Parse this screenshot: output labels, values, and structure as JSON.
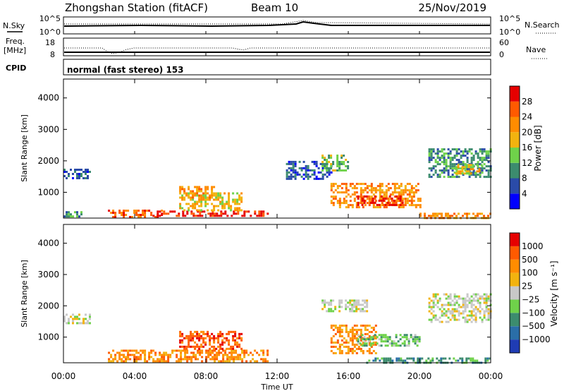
{
  "header": {
    "title": "Zhongshan Station (fitACF)",
    "beam": "Beam 10",
    "date": "25/Nov/2019"
  },
  "panels": {
    "nsky": {
      "label": "N.Sky",
      "right_label": "N.Search",
      "ticks": [
        "10^5",
        "10^0"
      ],
      "right_ticks": [
        "10^5",
        "10^0"
      ]
    },
    "freq": {
      "label_1": "Freq.",
      "label_2": "[MHz]",
      "right_label": "Nave",
      "ticks": [
        "18",
        "8"
      ],
      "right_ticks": [
        "60",
        "0"
      ]
    },
    "cpid": {
      "label": "CPID",
      "text": "normal (fast stereo) 153"
    }
  },
  "power": {
    "ylabel": "Slant Range [km]",
    "cbar_label": "Power [dB]",
    "cbar_ticks": [
      "28",
      "24",
      "20",
      "16",
      "12",
      "8",
      "4"
    ],
    "colors": [
      "#0000ff",
      "#2a4ba8",
      "#3c8c6e",
      "#6fd24a",
      "#f2b30f",
      "#ff8c00",
      "#ff5a00",
      "#e60000"
    ]
  },
  "velocity": {
    "ylabel": "Slant Range [km]",
    "cbar_label": "Velocity [m s⁻¹]",
    "cbar_ticks": [
      "1000",
      "500",
      "100",
      "25",
      "−25",
      "−100",
      "−500",
      "−1000"
    ],
    "colors": [
      "#1f3cb4",
      "#2a6ea8",
      "#3c8c6e",
      "#6fd24a",
      "#c8c8c8",
      "#f2b30f",
      "#ff8c00",
      "#ff5a00",
      "#e60000"
    ]
  },
  "axes": {
    "xlabel": "Time UT",
    "x_ticks": [
      "00:00",
      "04:00",
      "08:00",
      "12:00",
      "16:00",
      "20:00",
      "00:00"
    ],
    "y_ticks": [
      "4000",
      "3000",
      "2000",
      "1000"
    ]
  },
  "chart_data": {
    "type": "heatmap",
    "title": "Zhongshan Station (fitACF)",
    "subtitle": "Beam 10",
    "date": "25/Nov/2019",
    "xlabel": "Time UT",
    "ylabel": "Slant Range [km]",
    "xlim": [
      "00:00",
      "24:00"
    ],
    "ylim": [
      180,
      4600
    ],
    "x_ticks": [
      "00:00",
      "04:00",
      "08:00",
      "12:00",
      "16:00",
      "20:00",
      "00:00"
    ],
    "y_ticks": [
      1000,
      2000,
      3000,
      4000
    ],
    "power_colorbar": {
      "label": "Power [dB]",
      "ticks": [
        4,
        8,
        12,
        16,
        20,
        24,
        28
      ]
    },
    "velocity_colorbar": {
      "label": "Velocity [m s⁻¹]",
      "ticks": [
        1000,
        500,
        100,
        25,
        -25,
        -100,
        -500,
        -1000
      ]
    },
    "power_regions": [
      {
        "t": [
          0.0,
          1.5
        ],
        "r": [
          1450,
          1750
        ],
        "level": 1
      },
      {
        "t": [
          0.0,
          1.0
        ],
        "r": [
          220,
          400
        ],
        "level": 2
      },
      {
        "t": [
          2.5,
          5.5
        ],
        "r": [
          220,
          450
        ],
        "level": 6
      },
      {
        "t": [
          5.0,
          11.5
        ],
        "r": [
          220,
          420
        ],
        "level": 7
      },
      {
        "t": [
          6.5,
          10.0
        ],
        "r": [
          400,
          1000
        ],
        "level": 4
      },
      {
        "t": [
          6.5,
          8.5
        ],
        "r": [
          800,
          1200
        ],
        "level": 5
      },
      {
        "t": [
          12.5,
          15.0
        ],
        "r": [
          1400,
          2000
        ],
        "level": 1
      },
      {
        "t": [
          14.5,
          16.0
        ],
        "r": [
          1700,
          2200
        ],
        "level": 3
      },
      {
        "t": [
          15.0,
          20.0
        ],
        "r": [
          500,
          1300
        ],
        "level": 5
      },
      {
        "t": [
          16.5,
          19.0
        ],
        "r": [
          600,
          900
        ],
        "level": 7
      },
      {
        "t": [
          20.5,
          24.0
        ],
        "r": [
          1500,
          2400
        ],
        "level": 2
      },
      {
        "t": [
          22.0,
          23.5
        ],
        "r": [
          1600,
          1900
        ],
        "level": 4
      },
      {
        "t": [
          20.0,
          24.0
        ],
        "r": [
          200,
          350
        ],
        "level": 5
      }
    ],
    "velocity_regions": [
      {
        "t": [
          0.0,
          1.5
        ],
        "r": [
          1450,
          1750
        ],
        "level": 4
      },
      {
        "t": [
          2.5,
          11.5
        ],
        "r": [
          220,
          600
        ],
        "level": 6
      },
      {
        "t": [
          6.5,
          10.0
        ],
        "r": [
          600,
          1200
        ],
        "level": 7
      },
      {
        "t": [
          14.5,
          17.0
        ],
        "r": [
          1800,
          2200
        ],
        "level": 4
      },
      {
        "t": [
          15.0,
          17.5
        ],
        "r": [
          500,
          1400
        ],
        "level": 6
      },
      {
        "t": [
          16.5,
          20.0
        ],
        "r": [
          700,
          1100
        ],
        "level": 3
      },
      {
        "t": [
          20.5,
          24.0
        ],
        "r": [
          1500,
          2400
        ],
        "level": 4
      },
      {
        "t": [
          17.0,
          24.0
        ],
        "r": [
          200,
          350
        ],
        "level": 2
      }
    ]
  }
}
